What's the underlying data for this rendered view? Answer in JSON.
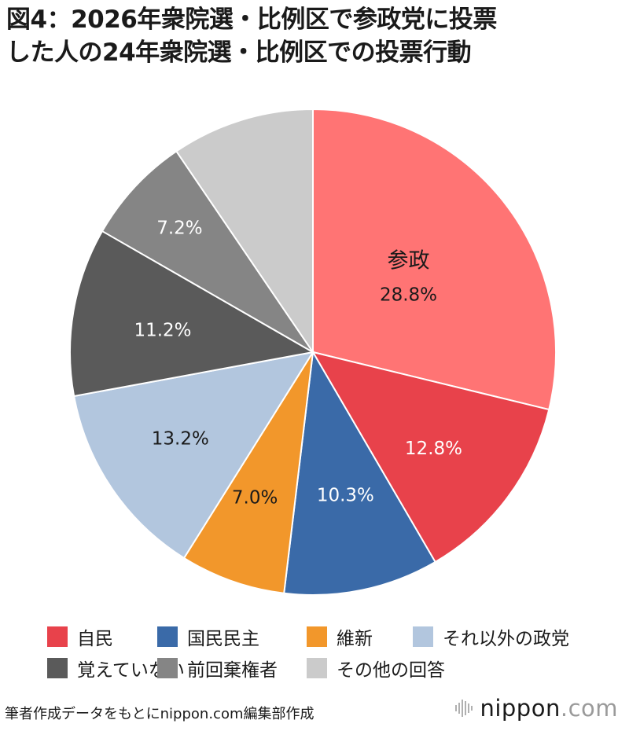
{
  "title": {
    "line1": "図4：2026年衆院選・比例区で参政党に投票",
    "line2": "した人の24年衆院選・比例区での投票行動"
  },
  "chart_data": {
    "type": "pie",
    "start_angle_deg": 0,
    "direction": "clockwise",
    "slices": [
      {
        "name": "参政",
        "value": 28.8,
        "label": "28.8%",
        "color": "#FF7474",
        "label_color": "#1a1a1a"
      },
      {
        "name": "自民",
        "value": 12.8,
        "label": "12.8%",
        "color": "#E8424B",
        "label_color": "#ffffff"
      },
      {
        "name": "国民民主",
        "value": 10.3,
        "label": "10.3%",
        "color": "#3A6AA8",
        "label_color": "#ffffff"
      },
      {
        "name": "維新",
        "value": 7.0,
        "label": "7.0%",
        "color": "#F2972B",
        "label_color": "#1a1a1a"
      },
      {
        "name": "それ以外の政党",
        "value": 13.2,
        "label": "13.2%",
        "color": "#B2C6DE",
        "label_color": "#1a1a1a"
      },
      {
        "name": "覚えていない",
        "value": 11.2,
        "label": "11.2%",
        "color": "#5A5A5A",
        "label_color": "#ffffff"
      },
      {
        "name": "前回棄権者",
        "value": 7.2,
        "label": "7.2%",
        "color": "#858585",
        "label_color": "#ffffff"
      },
      {
        "name": "その他の回答",
        "value": 9.5,
        "label": "",
        "color": "#CBCBCB",
        "label_color": "#1a1a1a"
      }
    ]
  },
  "legend": {
    "row1": [
      {
        "label": "自民",
        "color": "#E8424B"
      },
      {
        "label": "国民民主",
        "color": "#3A6AA8"
      },
      {
        "label": "維新",
        "color": "#F2972B"
      },
      {
        "label": "それ以外の政党",
        "color": "#B2C6DE"
      }
    ],
    "row2": [
      {
        "label": "覚えていない",
        "color": "#5A5A5A"
      },
      {
        "label": "前回棄権者",
        "color": "#858585"
      },
      {
        "label": "その他の回答",
        "color": "#CBCBCB"
      }
    ]
  },
  "footer": {
    "source": "筆者作成データをもとにnippon.com編集部作成",
    "brand_name": "nippon",
    "brand_dot": ".",
    "brand_tld": "com"
  }
}
